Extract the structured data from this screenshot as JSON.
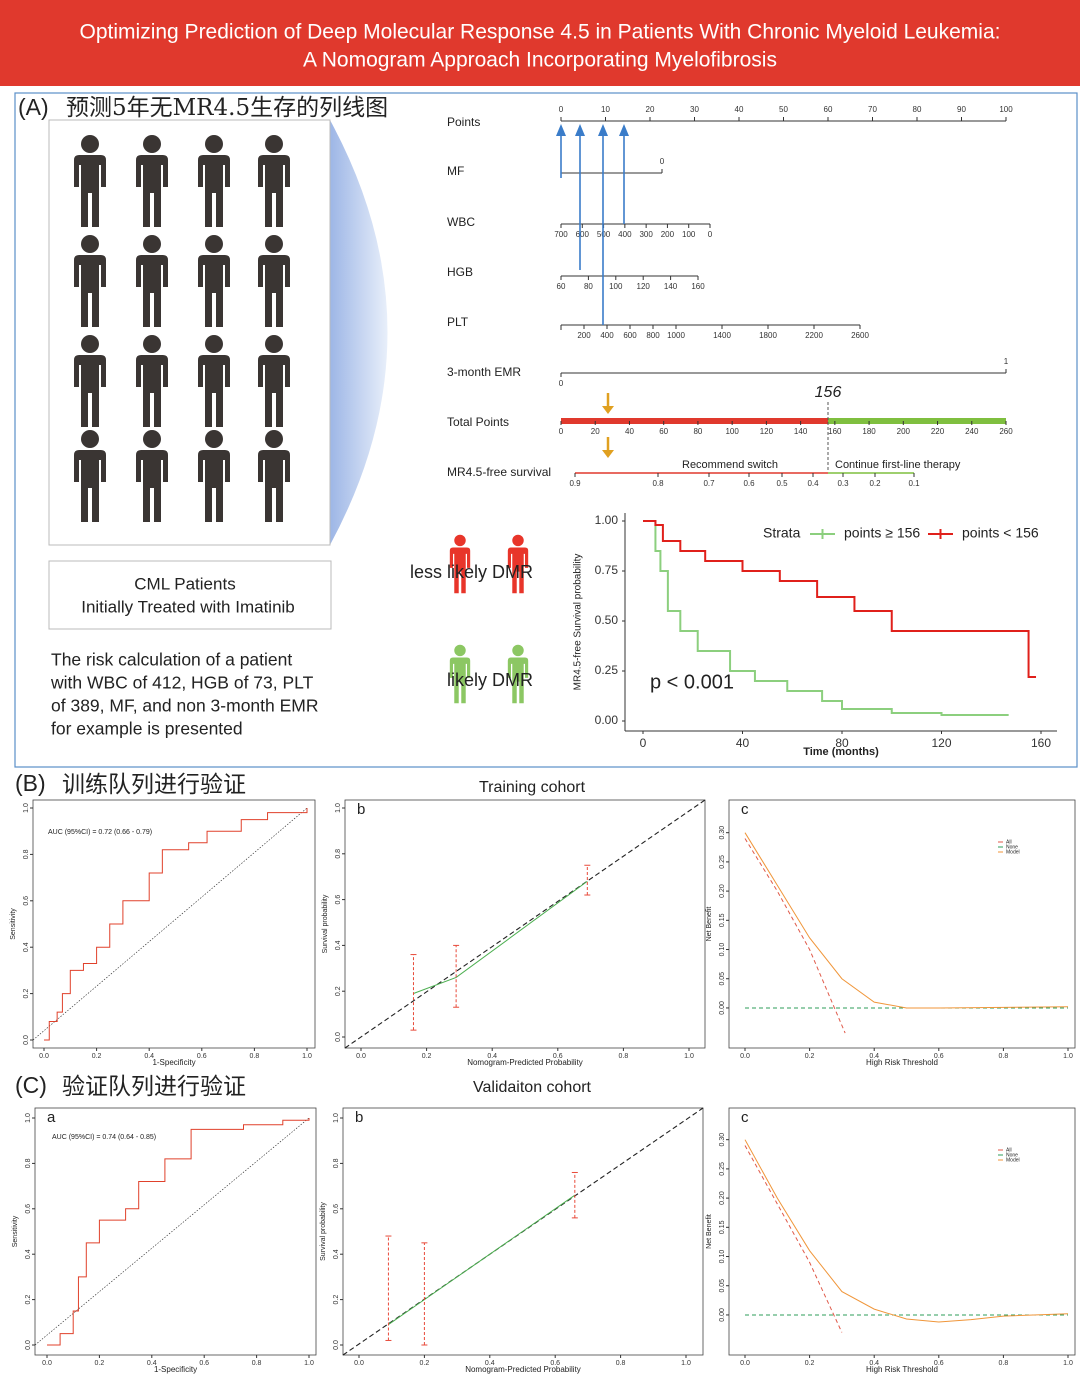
{
  "header": {
    "lines": [
      "Optimizing Prediction of  Deep Molecular Response 4.5 in Patients With Chronic Myeloid Leukemia:",
      "A Nomogram Approach Incorporating Myelofibrosis"
    ]
  },
  "panel_a": {
    "label": "(A)",
    "title": "预测5年无MR4.5生存的列线图",
    "box_lines": [
      "CML Patients",
      "Initially Treated with Imatinib"
    ],
    "example_lines": [
      "The risk calculation of a patient",
      "with WBC of 412, HGB of 73, PLT",
      "of 389, MF, and non 3-month EMR",
      "for example is presented"
    ],
    "less_likely": "less likely DMR",
    "likely": "likely DMR"
  },
  "nomogram": {
    "rows": [
      {
        "name": "Points",
        "ticks": [
          0,
          10,
          20,
          30,
          40,
          50,
          60,
          70,
          80,
          90,
          100
        ]
      },
      {
        "name": "MF",
        "ticks": [
          0
        ]
      },
      {
        "name": "WBC",
        "ticks": [
          700,
          600,
          500,
          400,
          300,
          200,
          100,
          0
        ]
      },
      {
        "name": "HGB",
        "ticks": [
          60,
          80,
          100,
          120,
          140,
          160
        ]
      },
      {
        "name": "PLT",
        "ticks": [
          200,
          400,
          600,
          800,
          1000,
          1400,
          1800,
          2200,
          2600
        ]
      },
      {
        "name": "3-month EMR",
        "ticks": [
          0,
          1
        ]
      },
      {
        "name": "Total Points",
        "ticks": [
          0,
          20,
          40,
          60,
          80,
          100,
          120,
          140,
          160,
          180,
          200,
          220,
          240,
          260
        ]
      },
      {
        "name": "MR4.5-free survival",
        "ticks": [
          0.9,
          0.8,
          0.7,
          0.6,
          0.5,
          0.4,
          0.3,
          0.2,
          0.1
        ]
      }
    ],
    "cutoff": 156,
    "left_note": "Recommend switch",
    "right_note": "Continue first-line therapy"
  },
  "panel_b": {
    "label": "(B)",
    "title": "训练队列进行验证",
    "cohort": "Training cohort"
  },
  "panel_c": {
    "label": "(C)",
    "title": "验证队列进行验证",
    "cohort": "Validaiton cohort"
  },
  "chart_data": [
    {
      "type": "line",
      "xlabel": "Time (months)",
      "ylabel": "MR4.5-free Survival probability",
      "xlim": [
        0,
        160
      ],
      "ylim": [
        0,
        1
      ],
      "xticks": [
        0,
        40,
        80,
        120,
        160
      ],
      "yticks": [
        {
          "value": 0,
          "label": "0.00"
        },
        0.25,
        {
          "value": 0.5,
          "label": "0.50"
        },
        0.75,
        {
          "value": 1,
          "label": "1.00"
        }
      ],
      "legend_title": "Strata",
      "annotation": "p < 0.001",
      "series": [
        {
          "name": "points ≥ 156",
          "color": "#8ccf7e",
          "step": true,
          "x": [
            0,
            5,
            7,
            10,
            15,
            22,
            35,
            45,
            58,
            72,
            80,
            100,
            120,
            147
          ],
          "values": [
            1,
            0.85,
            0.75,
            0.55,
            0.45,
            0.35,
            0.25,
            0.2,
            0.15,
            0.1,
            0.06,
            0.04,
            0.03,
            0.03
          ]
        },
        {
          "name": "points < 156",
          "color": "#e0201b",
          "step": true,
          "x": [
            0,
            5,
            8,
            15,
            25,
            40,
            55,
            70,
            85,
            100,
            155,
            158
          ],
          "values": [
            1,
            0.98,
            0.9,
            0.85,
            0.8,
            0.75,
            0.7,
            0.62,
            0.55,
            0.45,
            0.22,
            0.22
          ]
        }
      ]
    },
    {
      "type": "line",
      "xlabel": "1-Specificity",
      "ylabel": "Sensitivity",
      "diagonal": true,
      "xlim": [
        0,
        1
      ],
      "ylim": [
        0,
        1
      ],
      "xticks": [
        {
          "value": 0,
          "label": "0.0"
        },
        0.2,
        0.4,
        0.6,
        0.8,
        {
          "value": 1,
          "label": "1.0"
        }
      ],
      "yticks": [
        {
          "value": 0,
          "label": "0.0"
        },
        0.2,
        0.4,
        0.6,
        0.8,
        {
          "value": 1,
          "label": "1.0"
        }
      ],
      "annotation": "AUC (95%CI) = 0.72 (0.66 - 0.79)",
      "series": [
        {
          "color": "#e0412b",
          "step": true,
          "x": [
            0,
            0.02,
            0.05,
            0.07,
            0.1,
            0.15,
            0.2,
            0.25,
            0.3,
            0.4,
            0.45,
            0.55,
            0.62,
            0.75,
            0.85,
            1
          ],
          "values": [
            0,
            0.08,
            0.12,
            0.2,
            0.3,
            0.33,
            0.4,
            0.5,
            0.6,
            0.72,
            0.82,
            0.85,
            0.9,
            0.95,
            0.98,
            1
          ]
        }
      ]
    },
    {
      "type": "line",
      "label": "b",
      "xlabel": "Nomogram-Predicted Probability",
      "ylabel": "Survival probability",
      "diagonal": true,
      "xlim": [
        0,
        1
      ],
      "ylim": [
        0,
        1
      ],
      "xticks": [
        {
          "value": 0,
          "label": "0.0"
        },
        0.2,
        0.4,
        0.6,
        0.8,
        {
          "value": 1,
          "label": "1.0"
        }
      ],
      "yticks": [
        {
          "value": 0,
          "label": "0.0"
        },
        0.2,
        0.4,
        0.6,
        0.8,
        {
          "value": 1,
          "label": "1.0"
        }
      ],
      "error_color": "#e84a3a",
      "series": [
        {
          "color": "#4caf50",
          "x": [
            0.16,
            0.29,
            0.69
          ],
          "values": [
            0.19,
            0.26,
            0.68
          ],
          "lower": [
            0.03,
            0.13,
            0.62
          ],
          "upper": [
            0.36,
            0.4,
            0.75
          ]
        }
      ]
    },
    {
      "type": "line",
      "label": "c",
      "xlabel": "High Risk Threshold",
      "ylabel": "Net Benefit",
      "xlim": [
        0,
        1
      ],
      "ylim": [
        -0.06,
        0.32
      ],
      "xticks": [
        {
          "value": 0,
          "label": "0.0"
        },
        0.2,
        0.4,
        0.6,
        0.8,
        {
          "value": 1,
          "label": "1.0"
        }
      ],
      "yticks": [
        {
          "value": 0,
          "label": "0.00"
        },
        0.05,
        {
          "value": 0.1,
          "label": "0.10"
        },
        0.15,
        {
          "value": 0.2,
          "label": "0.20"
        },
        0.25,
        {
          "value": 0.3,
          "label": "0.30"
        }
      ],
      "legend": "upper-right",
      "series": [
        {
          "name": "All",
          "color": "#e05a4a",
          "dash": true,
          "x": [
            0,
            0.1,
            0.2,
            0.31
          ],
          "values": [
            0.29,
            0.2,
            0.1,
            -0.043
          ]
        },
        {
          "name": "None",
          "color": "#2e9e5a",
          "dash": true,
          "x": [
            0,
            1
          ],
          "values": [
            0,
            0
          ]
        },
        {
          "name": "Model",
          "color": "#f0963a",
          "x": [
            0,
            0.1,
            0.2,
            0.3,
            0.4,
            0.5,
            0.6,
            1
          ],
          "values": [
            0.3,
            0.21,
            0.12,
            0.05,
            0.01,
            0,
            0,
            0.002
          ]
        }
      ]
    },
    {
      "type": "line",
      "label": "a",
      "xlabel": "1-Specificity",
      "ylabel": "Sensitivity",
      "diagonal": true,
      "xlim": [
        0,
        1
      ],
      "ylim": [
        0,
        1
      ],
      "xticks": [
        {
          "value": 0,
          "label": "0.0"
        },
        0.2,
        0.4,
        0.6,
        0.8,
        {
          "value": 1,
          "label": "1.0"
        }
      ],
      "yticks": [
        {
          "value": 0,
          "label": "0.0"
        },
        0.2,
        0.4,
        0.6,
        0.8,
        {
          "value": 1,
          "label": "1.0"
        }
      ],
      "annotation": "AUC (95%CI) = 0.74 (0.64 - 0.85)",
      "series": [
        {
          "color": "#e0412b",
          "step": true,
          "x": [
            0,
            0.05,
            0.1,
            0.12,
            0.15,
            0.2,
            0.3,
            0.35,
            0.45,
            0.55,
            0.75,
            0.9,
            1
          ],
          "values": [
            0,
            0.05,
            0.15,
            0.3,
            0.45,
            0.55,
            0.6,
            0.72,
            0.82,
            0.95,
            0.97,
            0.99,
            1
          ]
        }
      ]
    },
    {
      "type": "line",
      "label": "b",
      "xlabel": "Nomogram-Predicted Probability",
      "ylabel": "Survival probability",
      "diagonal": true,
      "xlim": [
        0,
        1
      ],
      "ylim": [
        0,
        1
      ],
      "xticks": [
        {
          "value": 0,
          "label": "0.0"
        },
        0.2,
        0.4,
        0.6,
        0.8,
        {
          "value": 1,
          "label": "1.0"
        }
      ],
      "yticks": [
        {
          "value": 0,
          "label": "0.0"
        },
        0.2,
        0.4,
        0.6,
        0.8,
        {
          "value": 1,
          "label": "1.0"
        }
      ],
      "error_color": "#e84a3a",
      "series": [
        {
          "color": "#4caf50",
          "x": [
            0.09,
            0.2,
            0.66
          ],
          "values": [
            0.09,
            0.2,
            0.66
          ],
          "lower": [
            0.02,
            0,
            0.56
          ],
          "upper": [
            0.48,
            0.45,
            0.76
          ]
        }
      ]
    },
    {
      "type": "line",
      "label": "c",
      "xlabel": "High Risk Threshold",
      "ylabel": "Net Benefit",
      "xlim": [
        0,
        1
      ],
      "ylim": [
        -0.06,
        0.32
      ],
      "xticks": [
        {
          "value": 0,
          "label": "0.0"
        },
        0.2,
        0.4,
        0.6,
        0.8,
        {
          "value": 1,
          "label": "1.0"
        }
      ],
      "yticks": [
        {
          "value": 0,
          "label": "0.00"
        },
        0.05,
        {
          "value": 0.1,
          "label": "0.10"
        },
        0.15,
        {
          "value": 0.2,
          "label": "0.20"
        },
        0.25,
        {
          "value": 0.3,
          "label": "0.30"
        }
      ],
      "legend": "upper-right",
      "series": [
        {
          "name": "All",
          "color": "#e05a4a",
          "dash": true,
          "x": [
            0,
            0.1,
            0.2,
            0.3
          ],
          "values": [
            0.29,
            0.19,
            0.09,
            -0.03
          ]
        },
        {
          "name": "None",
          "color": "#2e9e5a",
          "dash": true,
          "x": [
            0,
            1
          ],
          "values": [
            0,
            0
          ]
        },
        {
          "name": "Model",
          "color": "#f0963a",
          "x": [
            0,
            0.1,
            0.2,
            0.3,
            0.4,
            0.5,
            0.6,
            0.7,
            0.8,
            1
          ],
          "values": [
            0.3,
            0.2,
            0.11,
            0.04,
            0.01,
            -0.007,
            -0.012,
            -0.008,
            -0.002,
            0.002
          ]
        }
      ]
    }
  ]
}
